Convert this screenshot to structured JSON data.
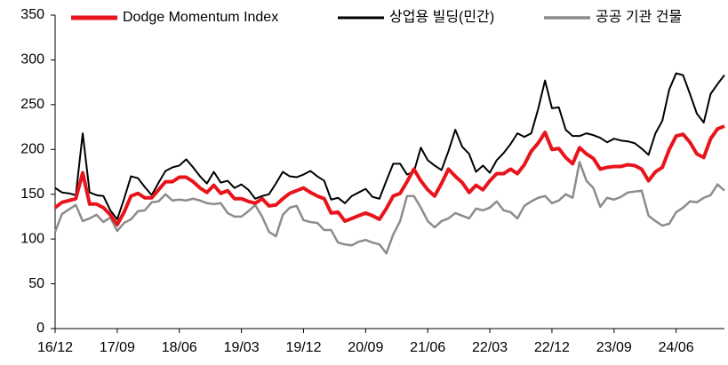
{
  "chart_data": {
    "type": "line",
    "categories": [
      "16/12",
      null,
      null,
      null,
      null,
      null,
      null,
      null,
      null,
      "17/09",
      null,
      null,
      null,
      null,
      null,
      null,
      null,
      null,
      "18/06",
      null,
      null,
      null,
      null,
      null,
      null,
      null,
      null,
      "19/03",
      null,
      null,
      null,
      null,
      null,
      null,
      null,
      null,
      "19/12",
      null,
      null,
      null,
      null,
      null,
      null,
      null,
      null,
      "20/09",
      null,
      null,
      null,
      null,
      null,
      null,
      null,
      null,
      "21/06",
      null,
      null,
      null,
      null,
      null,
      null,
      null,
      null,
      "22/03",
      null,
      null,
      null,
      null,
      null,
      null,
      null,
      null,
      "22/12",
      null,
      null,
      null,
      null,
      null,
      null,
      null,
      null,
      "23/09",
      null,
      null,
      null,
      null,
      null,
      null,
      null,
      null,
      "24/06",
      null,
      null,
      null,
      null,
      null,
      null,
      null
    ],
    "series": [
      {
        "name": "Dodge Momentum Index",
        "color": "#e8141c",
        "width": 4,
        "values": [
          135,
          141,
          143,
          145,
          174,
          139,
          139,
          135,
          127,
          116,
          130,
          148,
          151,
          146,
          146,
          155,
          164,
          164,
          169,
          169,
          164,
          157,
          152,
          160,
          151,
          154,
          145,
          145,
          142,
          140,
          145,
          137,
          138,
          145,
          151,
          154,
          157,
          152,
          148,
          145,
          129,
          130,
          120,
          123,
          126,
          129,
          126,
          122,
          134,
          148,
          151,
          164,
          178,
          165,
          155,
          148,
          162,
          178,
          170,
          163,
          152,
          160,
          155,
          165,
          173,
          173,
          178,
          173,
          183,
          198,
          207,
          219,
          200,
          201,
          191,
          184,
          202,
          195,
          190,
          178,
          180,
          181,
          181,
          183,
          182,
          178,
          165,
          175,
          180,
          200,
          215,
          217,
          208,
          195,
          191,
          212,
          223,
          226
        ]
      },
      {
        "name": "상업용 빌딩(민간)",
        "color": "#000000",
        "width": 2,
        "values": [
          157,
          152,
          151,
          149,
          218,
          152,
          149,
          148,
          132,
          122,
          145,
          170,
          168,
          158,
          149,
          163,
          176,
          180,
          182,
          189,
          180,
          170,
          162,
          175,
          163,
          165,
          157,
          161,
          155,
          145,
          148,
          150,
          162,
          175,
          170,
          169,
          172,
          176,
          170,
          165,
          144,
          146,
          140,
          148,
          152,
          156,
          147,
          145,
          165,
          184,
          184,
          172,
          175,
          202,
          188,
          182,
          177,
          198,
          222,
          203,
          195,
          175,
          182,
          174,
          188,
          196,
          206,
          218,
          214,
          218,
          245,
          277,
          246,
          247,
          222,
          215,
          215,
          218,
          216,
          213,
          208,
          212,
          210,
          209,
          207,
          201,
          194,
          218,
          232,
          267,
          285,
          283,
          262,
          240,
          230,
          262,
          273,
          283
        ]
      },
      {
        "name": "공공 기관 건물",
        "color": "#8c8c8c",
        "width": 2.5,
        "values": [
          108,
          128,
          133,
          138,
          120,
          123,
          127,
          119,
          124,
          109,
          118,
          122,
          131,
          132,
          141,
          142,
          150,
          143,
          144,
          143,
          145,
          143,
          140,
          139,
          140,
          129,
          125,
          125,
          131,
          138,
          125,
          108,
          103,
          127,
          135,
          137,
          121,
          119,
          118,
          110,
          110,
          96,
          94,
          93,
          97,
          99,
          96,
          94,
          84,
          105,
          120,
          148,
          148,
          135,
          120,
          113,
          120,
          123,
          129,
          126,
          123,
          134,
          132,
          135,
          142,
          132,
          130,
          123,
          137,
          142,
          146,
          148,
          140,
          143,
          150,
          146,
          186,
          165,
          157,
          136,
          146,
          144,
          147,
          152,
          153,
          154,
          126,
          120,
          115,
          117,
          130,
          135,
          142,
          141,
          146,
          149,
          161,
          154
        ]
      }
    ],
    "ylim": [
      0,
      350
    ],
    "yticks": [
      0,
      50,
      100,
      150,
      200,
      250,
      300,
      350
    ],
    "legend": "top"
  }
}
